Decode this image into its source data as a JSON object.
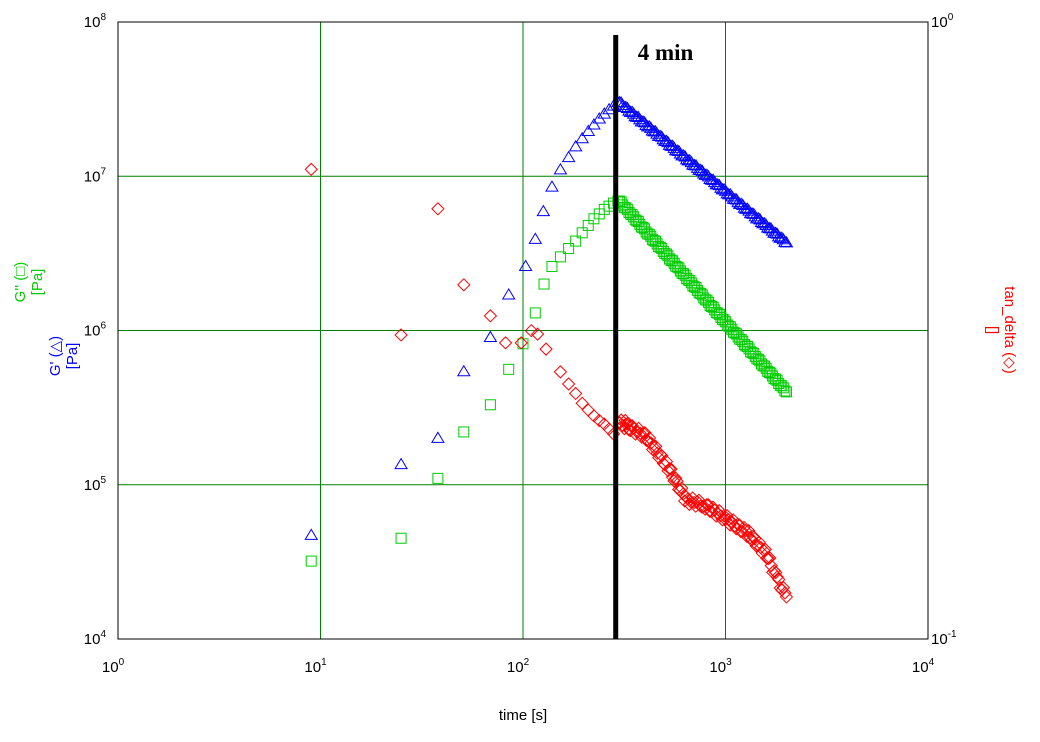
{
  "chart_data": {
    "type": "scatter",
    "xscale": "log",
    "yscale": "log",
    "y2scale": "log",
    "grid": true,
    "xlabel": "time [s]",
    "xlim": [
      1,
      10000
    ],
    "ylim": [
      10000,
      100000000
    ],
    "y2lim": [
      0.1,
      1
    ],
    "x_ticks": [
      {
        "base": "10",
        "exp": "0"
      },
      {
        "base": "10",
        "exp": "1"
      },
      {
        "base": "10",
        "exp": "2"
      },
      {
        "base": "10",
        "exp": "3"
      },
      {
        "base": "10",
        "exp": "4"
      }
    ],
    "y_ticks": [
      {
        "base": "10",
        "exp": "4"
      },
      {
        "base": "10",
        "exp": "5"
      },
      {
        "base": "10",
        "exp": "6"
      },
      {
        "base": "10",
        "exp": "7"
      },
      {
        "base": "10",
        "exp": "8"
      }
    ],
    "y2_ticks": [
      {
        "base": "10",
        "exp": "-1"
      },
      {
        "base": "10",
        "exp": "0"
      }
    ],
    "ylabels": [
      {
        "series": "G'",
        "line1": "G' (△)",
        "line2": "[Pa]",
        "color": "#0000ff"
      },
      {
        "series": "G''",
        "line1": "G'' (□)",
        "line2": "[Pa]",
        "color": "#00cc00"
      }
    ],
    "y2label": {
      "line1": "tan_delta (◇)",
      "line2": "[]",
      "color": "#ff0000"
    },
    "annotation": {
      "text": "4 min",
      "x": 287
    },
    "colors": {
      "grid": "#008000",
      "gp": "#0000ff",
      "gpp": "#00cc00",
      "tan": "#ff0000"
    },
    "series": [
      {
        "name": "G'",
        "axis": "left",
        "marker": "triangle",
        "color": "#0000ff",
        "sparse": [
          [
            9,
            47000
          ],
          [
            25,
            135000
          ],
          [
            38,
            200000
          ],
          [
            51,
            540000
          ],
          [
            69,
            900000
          ],
          [
            85,
            1700000
          ],
          [
            103,
            2600000
          ],
          [
            115,
            3900000
          ],
          [
            126,
            5900000
          ],
          [
            139,
            8500000
          ],
          [
            153,
            11000000
          ],
          [
            168,
            13200000
          ],
          [
            182,
            15500000
          ],
          [
            196,
            17500000
          ],
          [
            210,
            19500000
          ],
          [
            224,
            21500000
          ],
          [
            238,
            23500000
          ],
          [
            252,
            25300000
          ],
          [
            266,
            27000000
          ],
          [
            280,
            28500000
          ],
          [
            294,
            30000000
          ]
        ],
        "dense": [
          [
            300,
            30000000
          ],
          [
            2000,
            3700000
          ]
        ]
      },
      {
        "name": "G''",
        "axis": "left",
        "marker": "square",
        "color": "#00cc00",
        "sparse": [
          [
            9,
            32000
          ],
          [
            25,
            45000
          ],
          [
            38,
            110000
          ],
          [
            51,
            220000
          ],
          [
            69,
            330000
          ],
          [
            85,
            560000
          ],
          [
            100,
            820000
          ],
          [
            115,
            1300000
          ],
          [
            127,
            2000000
          ],
          [
            139,
            2600000
          ],
          [
            153,
            3000000
          ],
          [
            168,
            3400000
          ],
          [
            182,
            3800000
          ],
          [
            196,
            4300000
          ],
          [
            210,
            4800000
          ],
          [
            224,
            5300000
          ],
          [
            238,
            5700000
          ],
          [
            252,
            6100000
          ],
          [
            266,
            6400000
          ],
          [
            280,
            6700000
          ],
          [
            294,
            6900000
          ]
        ],
        "dense": [
          [
            300,
            6900000
          ],
          [
            2000,
            400000
          ]
        ]
      },
      {
        "name": "tan_delta",
        "axis": "right",
        "marker": "diamond",
        "color": "#ff0000",
        "sparse": [
          [
            9,
            0.577
          ],
          [
            25,
            0.311
          ],
          [
            38,
            0.498
          ],
          [
            51,
            0.375
          ],
          [
            69,
            0.334
          ],
          [
            82,
            0.302
          ],
          [
            98,
            0.302
          ],
          [
            110,
            0.316
          ],
          [
            118,
            0.312
          ],
          [
            130,
            0.295
          ],
          [
            153,
            0.271
          ],
          [
            168,
            0.259
          ],
          [
            182,
            0.25
          ],
          [
            196,
            0.241
          ],
          [
            210,
            0.235
          ],
          [
            224,
            0.23
          ],
          [
            238,
            0.226
          ],
          [
            252,
            0.223
          ],
          [
            266,
            0.219
          ],
          [
            280,
            0.215
          ],
          [
            300,
            0.224
          ],
          [
            320,
            0.226
          ],
          [
            340,
            0.222
          ]
        ],
        "dense": [
          [
            300,
            0.224
          ],
          [
            400,
            0.214
          ],
          [
            520,
            0.19
          ],
          [
            640,
            0.168
          ],
          [
            780,
            0.165
          ],
          [
            1000,
            0.157
          ],
          [
            1300,
            0.148
          ],
          [
            1600,
            0.137
          ],
          [
            1800,
            0.125
          ],
          [
            2000,
            0.117
          ]
        ]
      }
    ]
  }
}
